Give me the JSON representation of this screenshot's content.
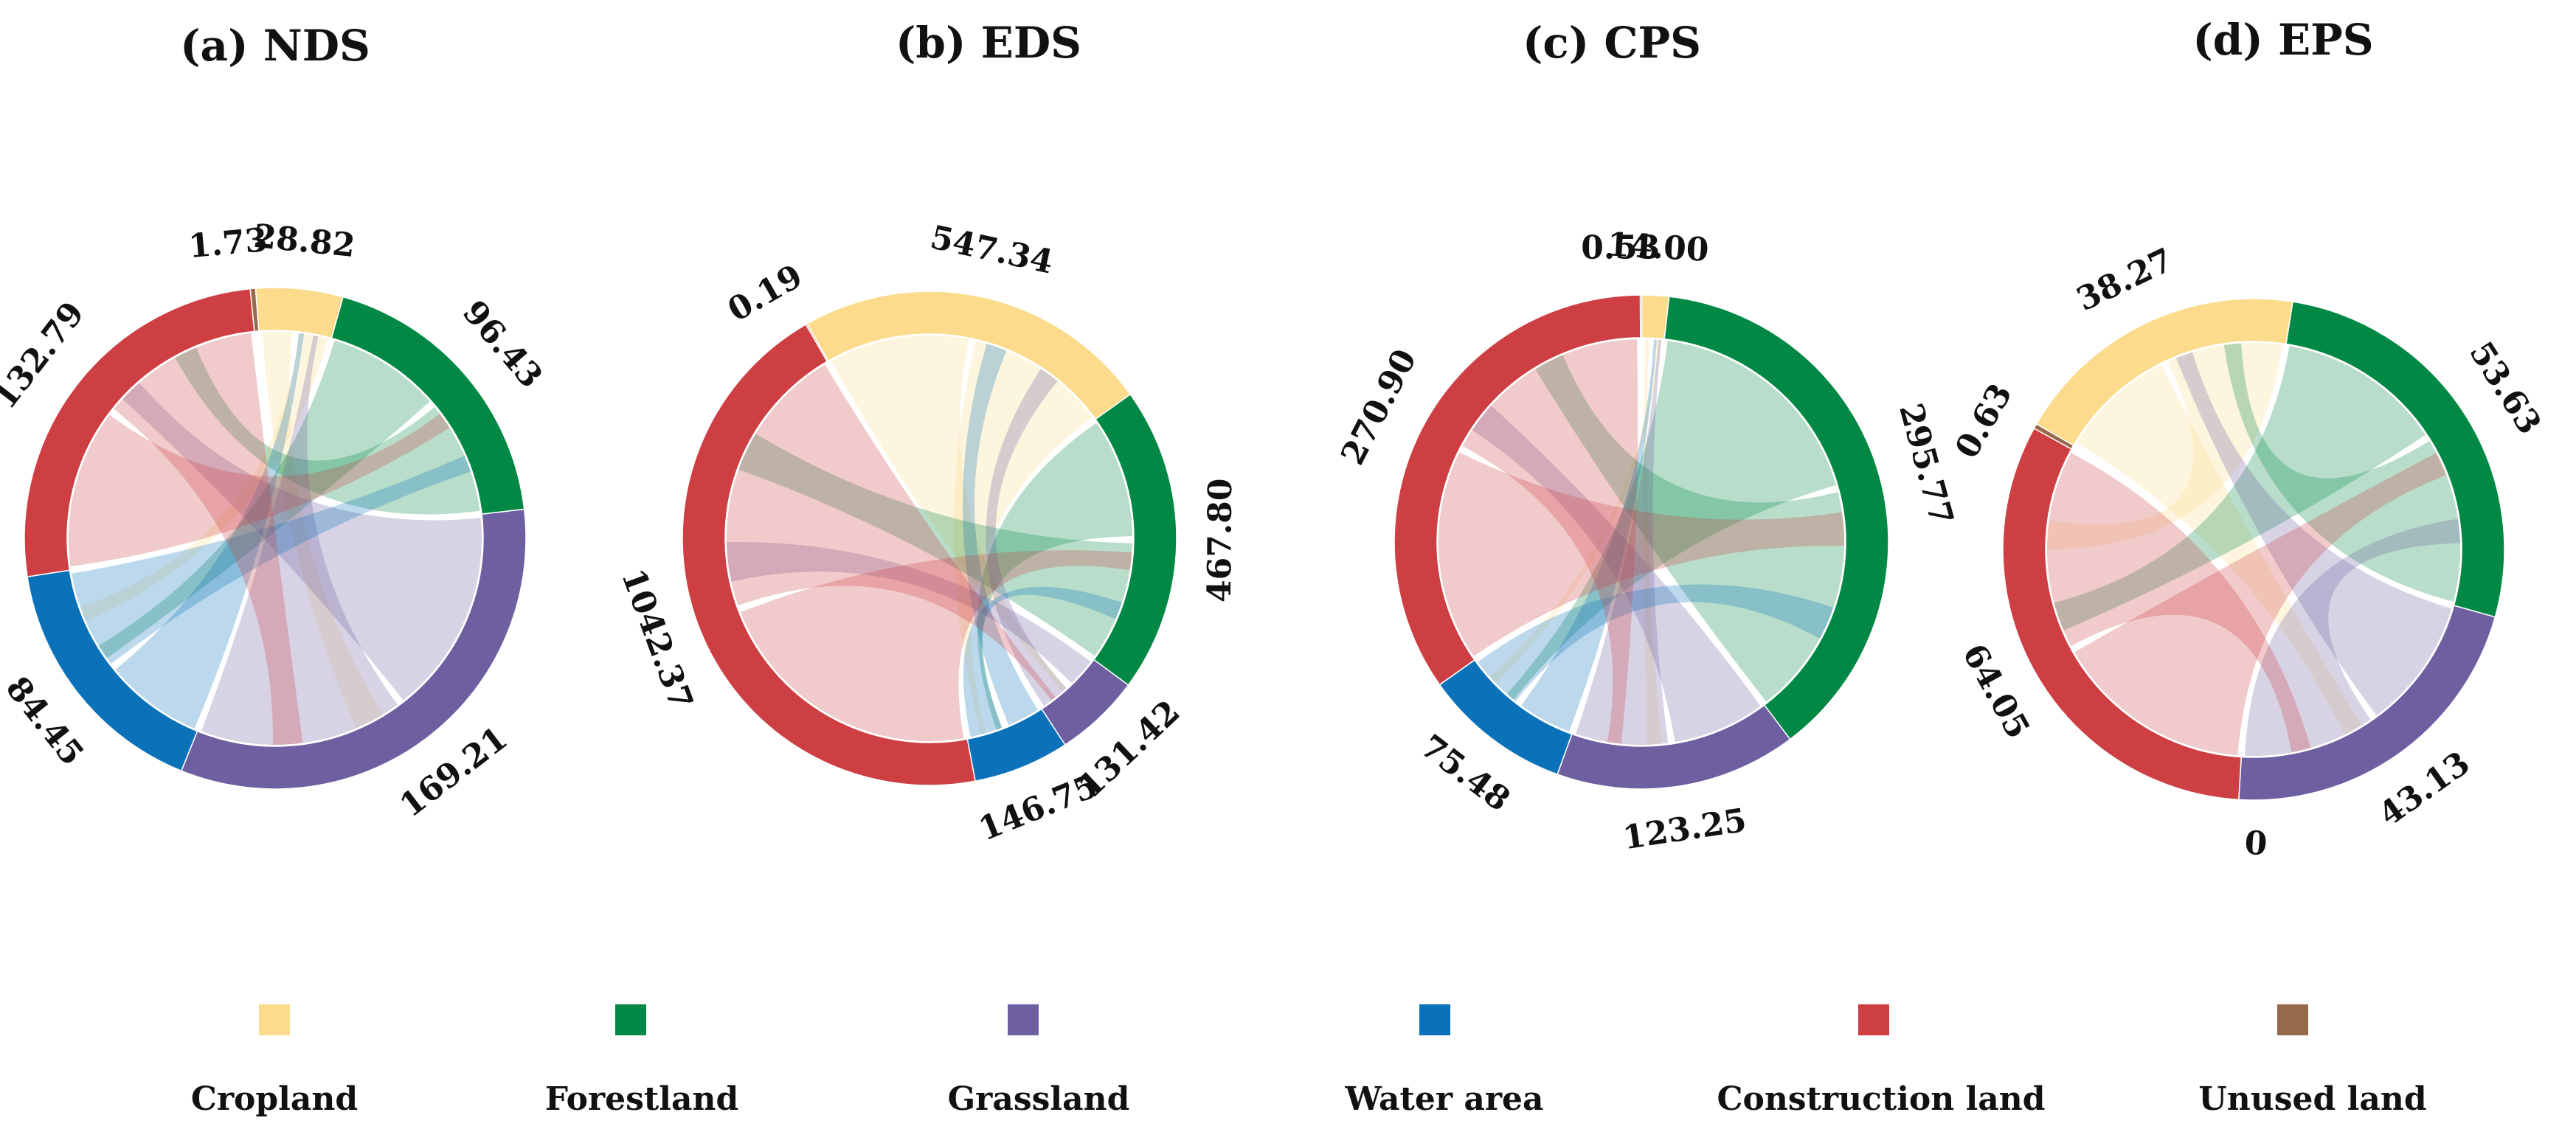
{
  "legend": [
    {
      "key": "cropland",
      "label": "Cropland",
      "color": "#FCDC8C"
    },
    {
      "key": "forestland",
      "label": "Forestland",
      "color": "#018844"
    },
    {
      "key": "grassland",
      "label": "Grassland",
      "color": "#6E60A0"
    },
    {
      "key": "water",
      "label": "Water area",
      "color": "#0B72BA"
    },
    {
      "key": "construction",
      "label": "Construction land",
      "color": "#CE3F44"
    },
    {
      "key": "unused",
      "label": "Unused land",
      "color": "#96694A"
    }
  ],
  "chart_data": [
    {
      "type": "chord",
      "title": "(a)  NDS",
      "segments": [
        {
          "category": "cropland",
          "value": 28.82,
          "label": "28.82"
        },
        {
          "category": "forestland",
          "value": 96.43,
          "label": "96.43"
        },
        {
          "category": "grassland",
          "value": 169.21,
          "label": "169.21"
        },
        {
          "category": "water",
          "value": 84.45,
          "label": "84.45"
        },
        {
          "category": "construction",
          "value": 132.79,
          "label": "132.79"
        },
        {
          "category": "unused",
          "value": 1.73,
          "label": "1.73"
        }
      ]
    },
    {
      "type": "chord",
      "title": "(b)  EDS",
      "segments": [
        {
          "category": "cropland",
          "value": 547.34,
          "label": "547.34"
        },
        {
          "category": "forestland",
          "value": 467.8,
          "label": "467.80"
        },
        {
          "category": "grassland",
          "value": 131.42,
          "label": "131.42"
        },
        {
          "category": "water",
          "value": 146.75,
          "label": "146.75"
        },
        {
          "category": "construction",
          "value": 1042.37,
          "label": "1042.37"
        },
        {
          "category": "unused",
          "value": 0.19,
          "label": "0.19"
        }
      ]
    },
    {
      "type": "chord",
      "title": "(c)  CPS",
      "segments": [
        {
          "category": "cropland",
          "value": 14.0,
          "label": "14.00"
        },
        {
          "category": "forestland",
          "value": 295.77,
          "label": "295.77"
        },
        {
          "category": "grassland",
          "value": 123.25,
          "label": "123.25"
        },
        {
          "category": "water",
          "value": 75.48,
          "label": "75.48"
        },
        {
          "category": "construction",
          "value": 270.9,
          "label": "270.90"
        },
        {
          "category": "unused",
          "value": 0.53,
          "label": "0.53"
        }
      ]
    },
    {
      "type": "chord",
      "title": "(d)  EPS",
      "segments": [
        {
          "category": "cropland",
          "value": 38.27,
          "label": "38.27"
        },
        {
          "category": "forestland",
          "value": 53.63,
          "label": "53.63"
        },
        {
          "category": "grassland",
          "value": 43.13,
          "label": "43.13"
        },
        {
          "category": "water",
          "value": 0,
          "label": "0"
        },
        {
          "category": "construction",
          "value": 64.05,
          "label": "64.05"
        },
        {
          "category": "unused",
          "value": 0.63,
          "label": "0.63"
        }
      ]
    }
  ]
}
